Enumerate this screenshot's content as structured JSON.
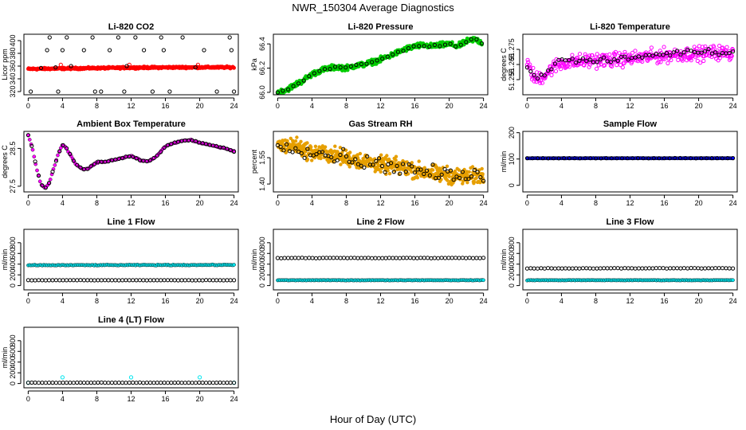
{
  "figure": {
    "title": "NWR_150304  Average Diagnostics",
    "xlabel": "Hour of Day (UTC)"
  },
  "chart_data": [
    {
      "id": "co2",
      "type": "scatter",
      "title": "Li-820 CO2",
      "ylabel": "Licor ppm",
      "xlim": [
        -0.5,
        24.5
      ],
      "ylim": [
        315,
        410
      ],
      "xticks": [
        0,
        4,
        8,
        12,
        16,
        20,
        24
      ],
      "yticks": [
        {
          "v": 320,
          "l": "320"
        },
        {
          "v": 340,
          "l": "340"
        },
        {
          "v": 360,
          "l": "360"
        },
        {
          "v": 380,
          "l": "380"
        },
        {
          "v": 400,
          "l": "400"
        }
      ],
      "series": [
        {
          "role": "band",
          "color": "#ff0000",
          "x": [
            0,
            3,
            6,
            9,
            12,
            15,
            18,
            21,
            24
          ],
          "y": [
            355.5,
            356.0,
            356.5,
            357.0,
            357.5,
            357.8,
            358.0,
            358.0,
            358.0
          ],
          "noise": 1.2,
          "n": 500,
          "size": 2.4
        },
        {
          "role": "open",
          "color": "#ff0000",
          "x": [
            3.8,
            11.8,
            19.8
          ],
          "y": [
            362,
            362,
            362
          ]
        },
        {
          "role": "open",
          "color": "#000000",
          "x": [
            0.3,
            1.5,
            2.2,
            2.5,
            3.2,
            3.5,
            4.0,
            4.5,
            5.0,
            6.5,
            7.5,
            7.8,
            8.5,
            9.5,
            10.5,
            11.2,
            11.5,
            12.5,
            13.5,
            14.5,
            15.5,
            15.8,
            16.5,
            18.0,
            19.5,
            20.5,
            22.0,
            23.5,
            23.7,
            24.0
          ],
          "y": [
            320,
            357,
            385,
            405,
            358,
            320,
            385,
            405,
            360,
            385,
            405,
            320,
            320,
            385,
            405,
            320,
            360,
            405,
            385,
            320,
            405,
            385,
            320,
            405,
            358,
            385,
            320,
            405,
            385,
            320
          ]
        }
      ]
    },
    {
      "id": "pressure",
      "type": "scatter",
      "title": "Li-820 Pressure",
      "ylabel": "kPa",
      "xlim": [
        -0.5,
        24.5
      ],
      "ylim": [
        65.98,
        66.48
      ],
      "xticks": [
        0,
        4,
        8,
        12,
        16,
        20,
        24
      ],
      "yticks": [
        {
          "v": 66.0,
          "l": "66.0"
        },
        {
          "v": 66.2,
          "l": "66.2"
        },
        {
          "v": 66.4,
          "l": "66.4"
        }
      ],
      "series": [
        {
          "role": "band",
          "color": "#00cc00",
          "x": [
            0,
            1,
            2,
            3,
            4,
            5,
            6,
            7,
            8,
            9,
            10,
            11,
            12,
            13,
            14,
            15,
            16,
            17,
            18,
            19,
            20,
            21,
            22,
            23,
            23.8
          ],
          "y": [
            66.0,
            66.02,
            66.06,
            66.1,
            66.15,
            66.18,
            66.2,
            66.21,
            66.2,
            66.22,
            66.23,
            66.25,
            66.27,
            66.3,
            66.33,
            66.36,
            66.38,
            66.39,
            66.38,
            66.39,
            66.4,
            66.38,
            66.42,
            66.44,
            66.41
          ],
          "noise": 0.018,
          "n": 450,
          "size": 2.4
        },
        {
          "role": "open",
          "color": "#000000",
          "x": [
            0,
            1,
            2,
            3,
            4,
            5,
            6,
            7,
            8,
            9,
            10,
            11,
            12,
            13,
            14,
            15,
            16,
            17,
            18,
            19,
            20,
            21,
            22,
            23,
            23.8
          ],
          "y": [
            66.0,
            66.02,
            66.06,
            66.1,
            66.15,
            66.18,
            66.2,
            66.21,
            66.2,
            66.22,
            66.23,
            66.25,
            66.27,
            66.3,
            66.33,
            66.36,
            66.38,
            66.39,
            66.38,
            66.39,
            66.4,
            66.38,
            66.42,
            66.44,
            66.41
          ],
          "noise": 0.008,
          "n": 40
        }
      ]
    },
    {
      "id": "temp",
      "type": "scatter",
      "title": "Li-820 Temperature",
      "ylabel": "degrees C",
      "xlim": [
        -0.5,
        24.5
      ],
      "ylim": [
        51.245,
        51.285
      ],
      "xticks": [
        0,
        4,
        8,
        12,
        16,
        20,
        24
      ],
      "yticks": [
        {
          "v": 51.255,
          "l": "51.255"
        },
        {
          "v": 51.265,
          "l": "51.265"
        },
        {
          "v": 51.275,
          "l": "51.275"
        }
      ],
      "series": [
        {
          "role": "open",
          "color": "#ff00ff",
          "x": [
            0,
            1,
            2,
            3,
            4,
            6,
            8,
            10,
            12,
            14,
            16,
            18,
            20,
            22,
            24
          ],
          "y": [
            51.265,
            51.255,
            51.258,
            51.263,
            51.266,
            51.267,
            51.268,
            51.268,
            51.269,
            51.27,
            51.271,
            51.272,
            51.272,
            51.273,
            51.272
          ],
          "noise": 0.004,
          "n": 380
        },
        {
          "role": "open",
          "color": "#000000",
          "x": [
            0,
            1,
            2,
            3,
            4,
            6,
            8,
            10,
            12,
            14,
            16,
            18,
            20,
            22,
            24
          ],
          "y": [
            51.265,
            51.256,
            51.259,
            51.264,
            51.268,
            51.268,
            51.267,
            51.268,
            51.269,
            51.271,
            51.272,
            51.273,
            51.274,
            51.273,
            51.273
          ],
          "noise": 0.0015,
          "n": 60
        }
      ]
    },
    {
      "id": "ambient",
      "type": "scatter",
      "title": "Ambient Box Temperature",
      "ylabel": "degrees C",
      "xlim": [
        -0.5,
        24.5
      ],
      "ylim": [
        27.35,
        28.95
      ],
      "xticks": [
        0,
        4,
        8,
        12,
        16,
        20,
        24
      ],
      "yticks": [
        {
          "v": 27.5,
          "l": "27.5"
        },
        {
          "v": 28.5,
          "l": "28.5"
        }
      ],
      "series": [
        {
          "role": "filled",
          "color": "#ff00ff",
          "x": [
            0,
            0.5,
            1,
            1.5,
            2,
            2.5,
            3,
            3.5,
            4,
            4.5,
            5,
            5.5,
            6,
            6.5,
            7,
            7.5,
            8,
            9,
            10,
            11,
            12,
            13,
            14,
            15,
            16,
            17,
            18,
            19,
            20,
            21,
            22,
            23,
            24
          ],
          "y": [
            28.85,
            28.5,
            27.95,
            27.55,
            27.45,
            27.6,
            28.0,
            28.35,
            28.6,
            28.5,
            28.3,
            28.1,
            28.0,
            27.95,
            27.97,
            28.05,
            28.13,
            28.15,
            28.2,
            28.25,
            28.3,
            28.2,
            28.15,
            28.3,
            28.55,
            28.65,
            28.7,
            28.72,
            28.65,
            28.6,
            28.55,
            28.5,
            28.42
          ],
          "noise": 0.015,
          "n": 140
        },
        {
          "role": "open",
          "color": "#000000",
          "x": [
            0,
            0.5,
            1,
            1.5,
            2,
            2.5,
            3,
            3.5,
            4,
            4.5,
            5,
            5.5,
            6,
            6.5,
            7,
            7.5,
            8,
            9,
            10,
            11,
            12,
            13,
            14,
            15,
            16,
            17,
            18,
            19,
            20,
            21,
            22,
            23,
            24
          ],
          "y": [
            28.85,
            28.5,
            27.95,
            27.55,
            27.45,
            27.6,
            28.0,
            28.35,
            28.6,
            28.5,
            28.3,
            28.1,
            28.0,
            27.95,
            27.97,
            28.05,
            28.13,
            28.15,
            28.2,
            28.25,
            28.3,
            28.2,
            28.15,
            28.3,
            28.55,
            28.65,
            28.7,
            28.72,
            28.65,
            28.6,
            28.55,
            28.5,
            28.42
          ],
          "noise": 0.01,
          "n": 60
        }
      ]
    },
    {
      "id": "rh",
      "type": "scatter",
      "title": "Gas Stream RH",
      "ylabel": "percent",
      "xlim": [
        -0.5,
        24.5
      ],
      "ylim": [
        1.355,
        1.7
      ],
      "xticks": [
        0,
        4,
        8,
        12,
        16,
        20,
        24
      ],
      "yticks": [
        {
          "v": 1.4,
          "l": "1.40"
        },
        {
          "v": 1.55,
          "l": "1.55"
        }
      ],
      "series": [
        {
          "role": "band",
          "color": "#e69f00",
          "x": [
            0,
            2,
            4,
            6,
            8,
            10,
            12,
            14,
            16,
            18,
            20,
            22,
            24
          ],
          "y": [
            1.62,
            1.62,
            1.58,
            1.57,
            1.55,
            1.53,
            1.51,
            1.5,
            1.48,
            1.46,
            1.45,
            1.44,
            1.45
          ],
          "noise": 0.04,
          "n": 550,
          "size": 2.2
        },
        {
          "role": "open",
          "color": "#000000",
          "x": [
            0,
            2,
            4,
            6,
            8,
            10,
            12,
            14,
            16,
            18,
            20,
            22,
            24
          ],
          "y": [
            1.62,
            1.62,
            1.58,
            1.57,
            1.55,
            1.53,
            1.51,
            1.5,
            1.48,
            1.46,
            1.45,
            1.44,
            1.45
          ],
          "noise": 0.035,
          "n": 70
        }
      ]
    },
    {
      "id": "sample",
      "type": "scatter",
      "title": "Sample Flow",
      "ylabel": "ml/min",
      "xlim": [
        -0.5,
        24.5
      ],
      "ylim": [
        -25,
        205
      ],
      "xticks": [
        0,
        4,
        8,
        12,
        16,
        20,
        24
      ],
      "yticks": [
        {
          "v": 0,
          "l": "0"
        },
        {
          "v": 100,
          "l": "100"
        },
        {
          "v": 200,
          "l": "200"
        }
      ],
      "series": [
        {
          "role": "filled",
          "color": "#0000ff",
          "x": [
            0,
            24
          ],
          "y": [
            103,
            103
          ],
          "noise": 0.5,
          "n": 200
        },
        {
          "role": "open",
          "color": "#000000",
          "x": [
            0,
            24
          ],
          "y": [
            103,
            103
          ],
          "noise": 0.5,
          "n": 40
        }
      ]
    },
    {
      "id": "line1",
      "type": "scatter",
      "title": "Line 1 Flow",
      "ylabel": "ml/min",
      "xlim": [
        -0.5,
        24.5
      ],
      "ylim": [
        -80,
        1050
      ],
      "xticks": [
        0,
        4,
        8,
        12,
        16,
        20,
        24
      ],
      "yticks": [
        {
          "v": 0,
          "l": "0"
        },
        {
          "v": 200,
          "l": "200"
        },
        {
          "v": 400,
          "l": "400"
        },
        {
          "v": 600,
          "l": "600"
        },
        {
          "v": 800,
          "l": "800"
        }
      ],
      "series": [
        {
          "role": "filled",
          "color": "#00e5ee",
          "x": [
            0,
            24
          ],
          "y": [
            380,
            385
          ],
          "noise": 6,
          "n": 160
        },
        {
          "role": "open",
          "color": "#000000",
          "x": [
            0,
            24
          ],
          "y": [
            100,
            100
          ],
          "noise": 2,
          "n": 60
        }
      ]
    },
    {
      "id": "line2",
      "type": "scatter",
      "title": "Line 2 Flow",
      "ylabel": "ml/min",
      "xlim": [
        -0.5,
        24.5
      ],
      "ylim": [
        -80,
        1050
      ],
      "xticks": [
        0,
        4,
        8,
        12,
        16,
        20,
        24
      ],
      "yticks": [
        {
          "v": 0,
          "l": "0"
        },
        {
          "v": 200,
          "l": "200"
        },
        {
          "v": 400,
          "l": "400"
        },
        {
          "v": 600,
          "l": "600"
        },
        {
          "v": 800,
          "l": "800"
        }
      ],
      "series": [
        {
          "role": "filled",
          "color": "#00e5ee",
          "x": [
            0,
            24
          ],
          "y": [
            100,
            100
          ],
          "noise": 3,
          "n": 160
        },
        {
          "role": "open",
          "color": "#000000",
          "x": [
            0,
            24
          ],
          "y": [
            515,
            515
          ],
          "noise": 4,
          "n": 60
        }
      ]
    },
    {
      "id": "line3",
      "type": "scatter",
      "title": "Line 3 Flow",
      "ylabel": "ml/min",
      "xlim": [
        -0.5,
        24.5
      ],
      "ylim": [
        -80,
        1050
      ],
      "xticks": [
        0,
        4,
        8,
        12,
        16,
        20,
        24
      ],
      "yticks": [
        {
          "v": 0,
          "l": "0"
        },
        {
          "v": 200,
          "l": "200"
        },
        {
          "v": 400,
          "l": "400"
        },
        {
          "v": 600,
          "l": "600"
        },
        {
          "v": 800,
          "l": "800"
        }
      ],
      "series": [
        {
          "role": "filled",
          "color": "#00e5ee",
          "x": [
            0,
            24
          ],
          "y": [
            100,
            100
          ],
          "noise": 3,
          "n": 160
        },
        {
          "role": "open",
          "color": "#000000",
          "x": [
            0,
            24
          ],
          "y": [
            320,
            325
          ],
          "noise": 4,
          "n": 60
        }
      ]
    },
    {
      "id": "line4",
      "type": "scatter",
      "title": "Line 4 (LT) Flow",
      "ylabel": "ml/min",
      "xlim": [
        -0.5,
        24.5
      ],
      "ylim": [
        -80,
        1050
      ],
      "xticks": [
        0,
        4,
        8,
        12,
        16,
        20,
        24
      ],
      "yticks": [
        {
          "v": 0,
          "l": "0"
        },
        {
          "v": 200,
          "l": "200"
        },
        {
          "v": 400,
          "l": "400"
        },
        {
          "v": 600,
          "l": "600"
        },
        {
          "v": 800,
          "l": "800"
        }
      ],
      "series": [
        {
          "role": "open",
          "color": "#00e5ee",
          "x": [
            0,
            4,
            12,
            20,
            24
          ],
          "y": [
            15,
            115,
            115,
            115,
            15
          ],
          "noise": 0,
          "n": 0,
          "pts": true
        },
        {
          "role": "open",
          "color": "#000000",
          "x": [
            0,
            24
          ],
          "y": [
            15,
            15
          ],
          "noise": 2,
          "n": 60
        }
      ]
    }
  ]
}
